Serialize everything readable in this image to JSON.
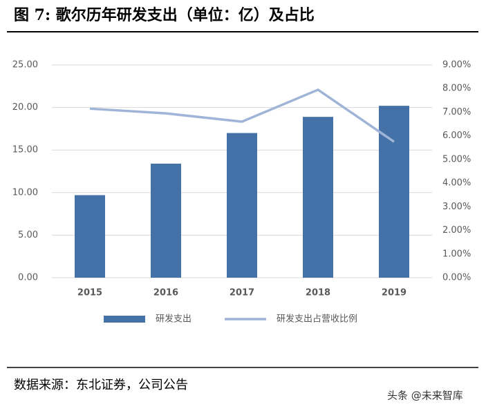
{
  "chart_data": {
    "type": "bar-line",
    "title": "图 7: 歌尔历年研发支出（单位：亿）及占比",
    "categories": [
      "2015",
      "2016",
      "2017",
      "2018",
      "2019"
    ],
    "series": [
      {
        "name": "研发支出",
        "type": "bar",
        "color": "#4472a8",
        "values": [
          9.7,
          13.4,
          17.0,
          18.9,
          20.2
        ]
      },
      {
        "name": "研发支出占营收比例",
        "type": "line",
        "axis": "y2",
        "color": "#9fb4d6",
        "values": [
          7.15,
          6.95,
          6.6,
          7.95,
          5.75
        ]
      }
    ],
    "ylim": [
      0,
      25
    ],
    "yticks": [
      {
        "value": 0,
        "label": "0.00"
      },
      {
        "value": 5,
        "label": "5.00"
      },
      {
        "value": 10,
        "label": "10.00"
      },
      {
        "value": 15,
        "label": "15.00"
      },
      {
        "value": 20,
        "label": "20.00"
      },
      {
        "value": 25,
        "label": "25.00"
      }
    ],
    "y2lim": [
      0,
      9
    ],
    "y2ticks": [
      {
        "value": 0,
        "label": "0.00%"
      },
      {
        "value": 1,
        "label": "1.00%"
      },
      {
        "value": 2,
        "label": "2.00%"
      },
      {
        "value": 3,
        "label": "3.00%"
      },
      {
        "value": 4,
        "label": "4.00%"
      },
      {
        "value": 5,
        "label": "5.00%"
      },
      {
        "value": 6,
        "label": "6.00%"
      },
      {
        "value": 7,
        "label": "7.00%"
      },
      {
        "value": 8,
        "label": "8.00%"
      },
      {
        "value": 9,
        "label": "9.00%"
      }
    ],
    "grid": true,
    "legend": "bottom"
  },
  "source": "数据来源：东北证券，公司公告",
  "watermark": "头条 @未来智库"
}
